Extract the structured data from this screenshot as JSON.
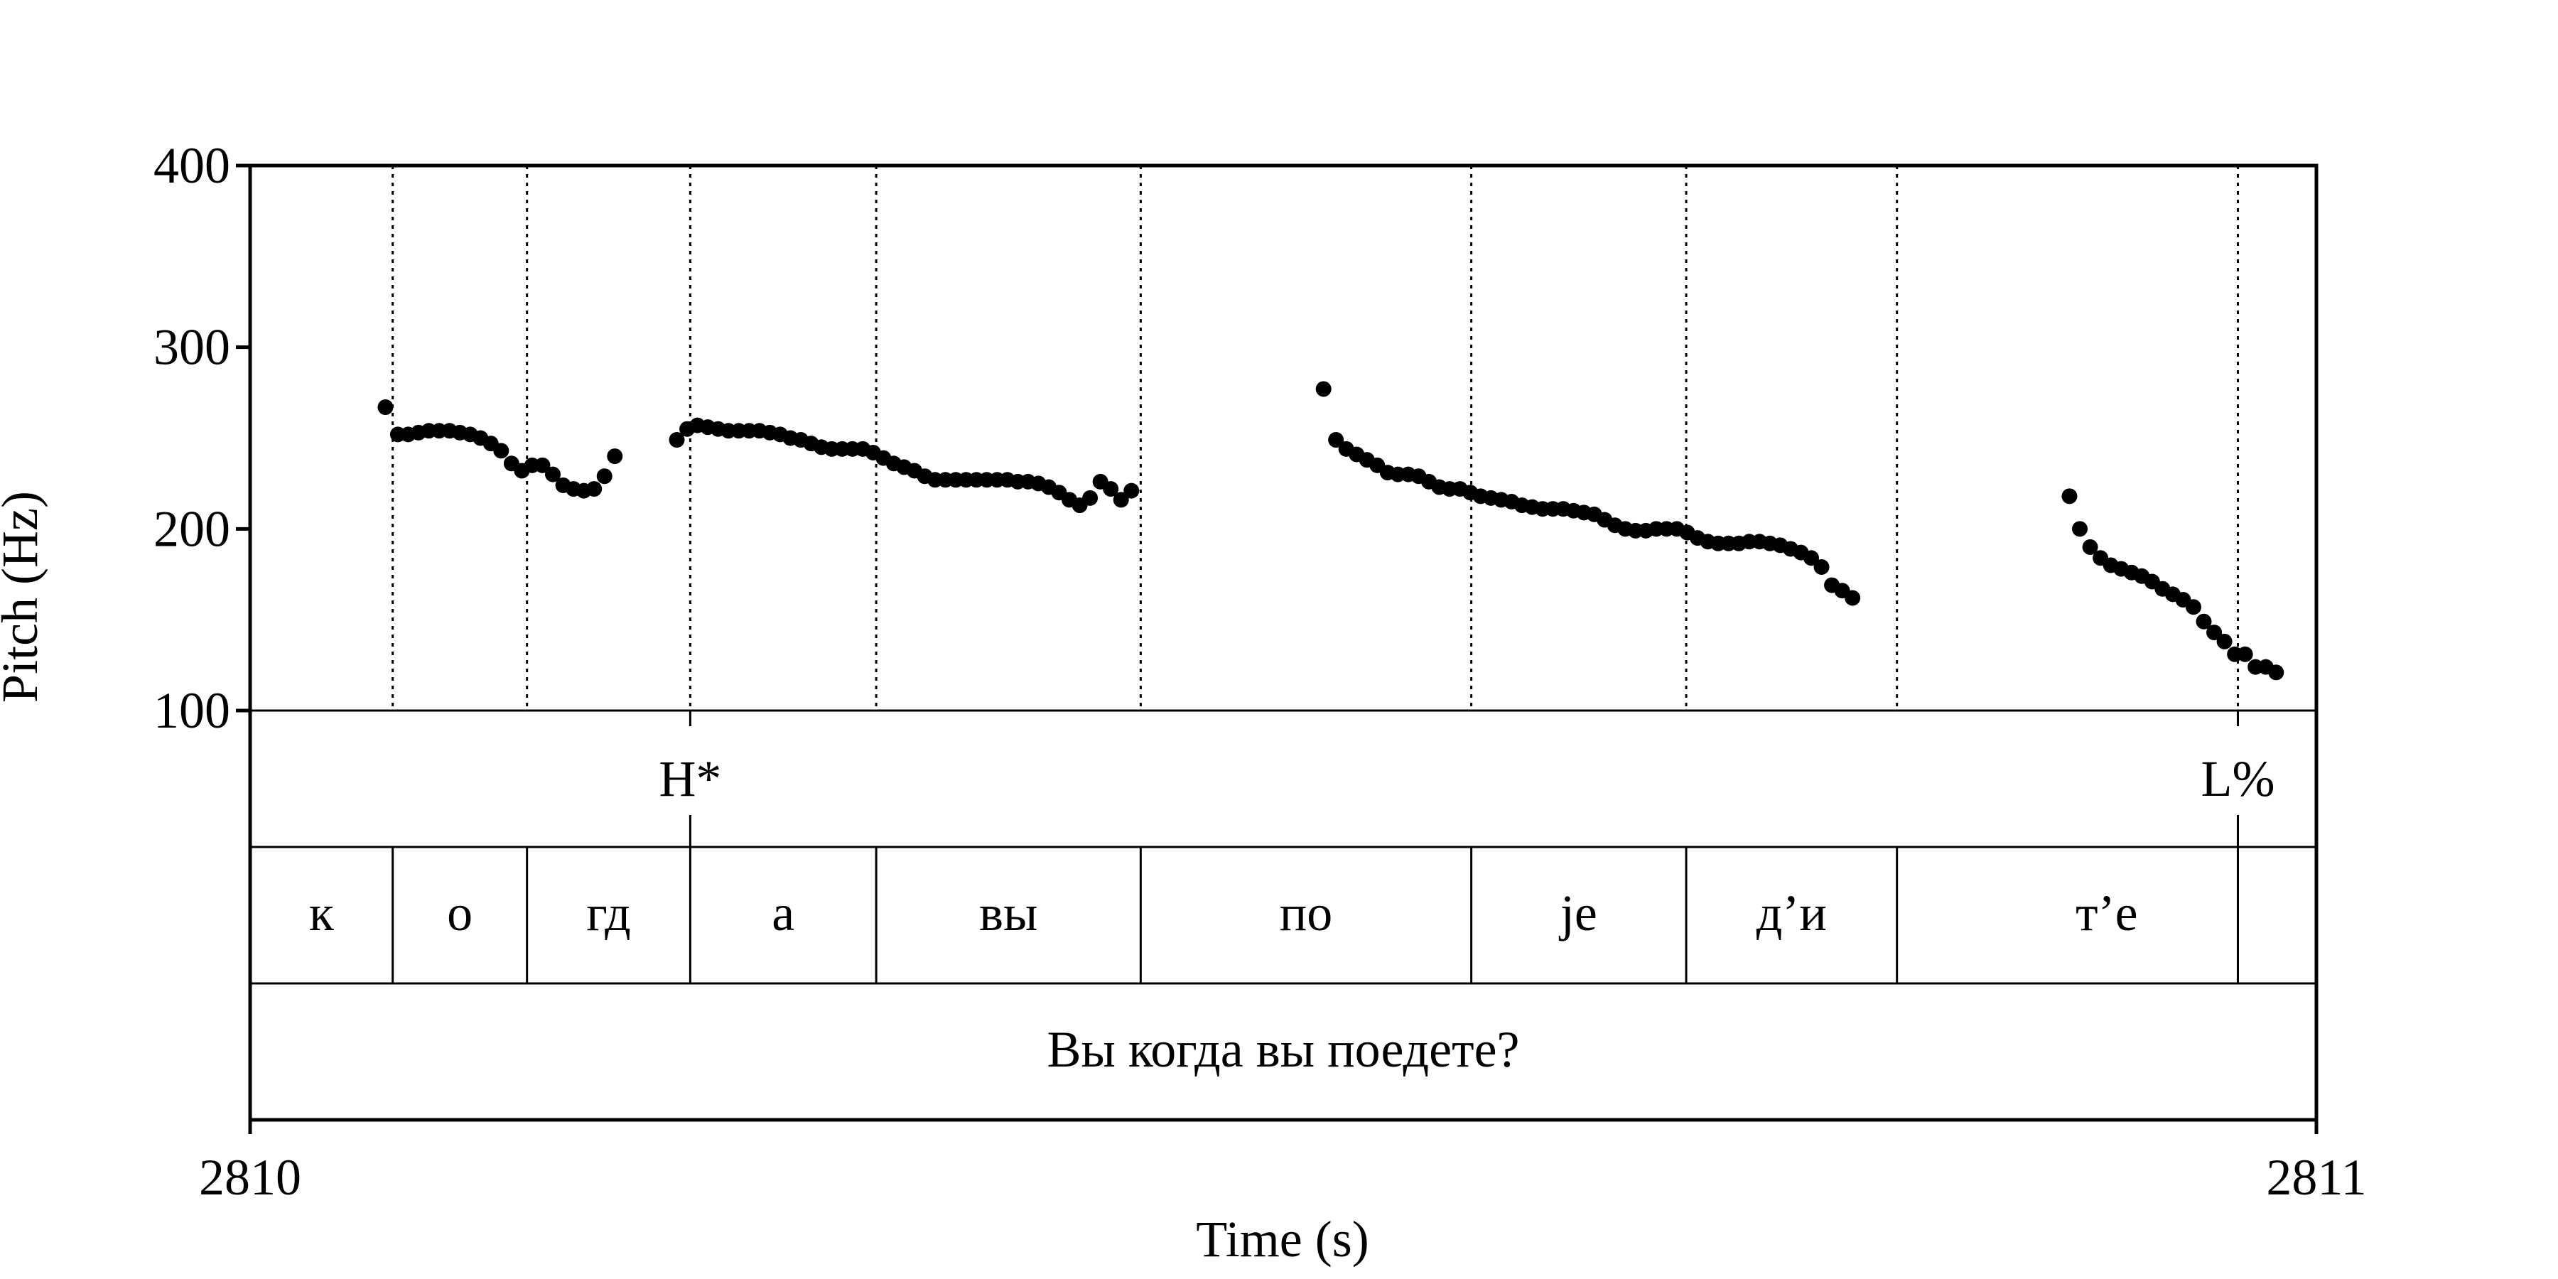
{
  "chart_data": {
    "type": "scatter",
    "xlabel": "Time (s)",
    "ylabel": "Pitch (Hz)",
    "xlim": [
      2810,
      2811
    ],
    "ylim": [
      100,
      400
    ],
    "x_ticks": [
      {
        "value": 2810,
        "label": "2810"
      },
      {
        "value": 2811,
        "label": "2811"
      }
    ],
    "y_ticks": [
      {
        "value": 100,
        "label": "100"
      },
      {
        "value": 200,
        "label": "200"
      },
      {
        "value": 300,
        "label": "300"
      },
      {
        "value": 400,
        "label": "400"
      }
    ],
    "boundaries": [
      2810.069,
      2810.134,
      2810.213,
      2810.303,
      2810.431,
      2810.591,
      2810.695,
      2810.797,
      2810.962
    ],
    "tones": [
      {
        "label": "H*",
        "time": 2810.213
      },
      {
        "label": "L%",
        "time": 2810.962
      }
    ],
    "segments": [
      {
        "label": "к",
        "start": 2810.0,
        "end": 2810.069
      },
      {
        "label": "о",
        "start": 2810.069,
        "end": 2810.134
      },
      {
        "label": "гд",
        "start": 2810.134,
        "end": 2810.213
      },
      {
        "label": "а",
        "start": 2810.213,
        "end": 2810.303
      },
      {
        "label": "вы",
        "start": 2810.303,
        "end": 2810.431
      },
      {
        "label": "по",
        "start": 2810.431,
        "end": 2810.591
      },
      {
        "label": "je",
        "start": 2810.591,
        "end": 2810.695
      },
      {
        "label": "д’и",
        "start": 2810.695,
        "end": 2810.797
      },
      {
        "label": "т’е",
        "start": 2810.797,
        "end": 2811.0
      }
    ],
    "sentence": "Вы когда вы поедете?",
    "series": [
      {
        "values": [
          [
            2810.0655,
            267
          ],
          [
            2810.0715,
            252
          ],
          [
            2810.0765,
            252
          ],
          [
            2810.0815,
            253
          ],
          [
            2810.0865,
            254
          ],
          [
            2810.0915,
            254
          ],
          [
            2810.0965,
            254
          ],
          [
            2810.1015,
            253
          ],
          [
            2810.1065,
            252
          ],
          [
            2810.1115,
            250
          ],
          [
            2810.1165,
            247
          ],
          [
            2810.1215,
            243
          ],
          [
            2810.1265,
            236
          ],
          [
            2810.1315,
            232
          ],
          [
            2810.1365,
            235
          ],
          [
            2810.1415,
            235
          ],
          [
            2810.1465,
            230
          ],
          [
            2810.1515,
            224
          ],
          [
            2810.1565,
            222
          ],
          [
            2810.1615,
            221
          ],
          [
            2810.1665,
            222
          ],
          [
            2810.1715,
            229
          ],
          [
            2810.1765,
            240
          ],
          [
            2810.2065,
            249
          ],
          [
            2810.2115,
            255
          ],
          [
            2810.2165,
            257
          ],
          [
            2810.2215,
            256
          ],
          [
            2810.2265,
            255
          ],
          [
            2810.2315,
            254
          ],
          [
            2810.2365,
            254
          ],
          [
            2810.2415,
            254
          ],
          [
            2810.2465,
            254
          ],
          [
            2810.2515,
            253
          ],
          [
            2810.2565,
            252
          ],
          [
            2810.2615,
            250
          ],
          [
            2810.2665,
            249
          ],
          [
            2810.2715,
            247
          ],
          [
            2810.2765,
            245
          ],
          [
            2810.2815,
            244
          ],
          [
            2810.2865,
            244
          ],
          [
            2810.2915,
            244
          ],
          [
            2810.2965,
            244
          ],
          [
            2810.3015,
            242
          ],
          [
            2810.3065,
            239
          ],
          [
            2810.3115,
            236
          ],
          [
            2810.3165,
            234
          ],
          [
            2810.3215,
            232
          ],
          [
            2810.3265,
            229
          ],
          [
            2810.3315,
            227
          ],
          [
            2810.3365,
            227
          ],
          [
            2810.3415,
            227
          ],
          [
            2810.3465,
            227
          ],
          [
            2810.3515,
            227
          ],
          [
            2810.3565,
            227
          ],
          [
            2810.3615,
            227
          ],
          [
            2810.3665,
            227
          ],
          [
            2810.3715,
            226
          ],
          [
            2810.3765,
            226
          ],
          [
            2810.3815,
            225
          ],
          [
            2810.3865,
            223
          ],
          [
            2810.3915,
            220
          ],
          [
            2810.3965,
            216
          ],
          [
            2810.4015,
            213
          ],
          [
            2810.4065,
            217
          ],
          [
            2810.4115,
            226
          ],
          [
            2810.4165,
            222
          ],
          [
            2810.4215,
            216
          ],
          [
            2810.4265,
            221
          ],
          [
            2810.5195,
            277
          ],
          [
            2810.5255,
            249
          ],
          [
            2810.5305,
            244
          ],
          [
            2810.5355,
            241
          ],
          [
            2810.5405,
            238
          ],
          [
            2810.5455,
            235
          ],
          [
            2810.5505,
            231
          ],
          [
            2810.5555,
            230
          ],
          [
            2810.5605,
            230
          ],
          [
            2810.5655,
            229
          ],
          [
            2810.5705,
            226
          ],
          [
            2810.5755,
            223
          ],
          [
            2810.5805,
            222
          ],
          [
            2810.5855,
            222
          ],
          [
            2810.5905,
            220
          ],
          [
            2810.5955,
            218
          ],
          [
            2810.6005,
            217
          ],
          [
            2810.6055,
            216
          ],
          [
            2810.6105,
            215
          ],
          [
            2810.6155,
            213
          ],
          [
            2810.6205,
            212
          ],
          [
            2810.6255,
            211
          ],
          [
            2810.6305,
            211
          ],
          [
            2810.6355,
            211
          ],
          [
            2810.6405,
            210
          ],
          [
            2810.6455,
            209
          ],
          [
            2810.6505,
            208
          ],
          [
            2810.6555,
            205
          ],
          [
            2810.6605,
            202
          ],
          [
            2810.6655,
            200
          ],
          [
            2810.6705,
            199
          ],
          [
            2810.6755,
            199
          ],
          [
            2810.6805,
            200
          ],
          [
            2810.6855,
            200
          ],
          [
            2810.6905,
            200
          ],
          [
            2810.6955,
            198
          ],
          [
            2810.7005,
            195
          ],
          [
            2810.7055,
            193
          ],
          [
            2810.7105,
            192
          ],
          [
            2810.7155,
            192
          ],
          [
            2810.7205,
            192
          ],
          [
            2810.7255,
            193
          ],
          [
            2810.7305,
            193
          ],
          [
            2810.7355,
            192
          ],
          [
            2810.7405,
            191
          ],
          [
            2810.7455,
            189
          ],
          [
            2810.7505,
            187
          ],
          [
            2810.7555,
            184
          ],
          [
            2810.7605,
            179
          ],
          [
            2810.7655,
            169
          ],
          [
            2810.7705,
            166
          ],
          [
            2810.7755,
            162
          ],
          [
            2810.8805,
            218
          ],
          [
            2810.8855,
            200
          ],
          [
            2810.8905,
            190
          ],
          [
            2810.8955,
            184
          ],
          [
            2810.9005,
            180
          ],
          [
            2810.9055,
            178
          ],
          [
            2810.9105,
            176
          ],
          [
            2810.9155,
            174
          ],
          [
            2810.9205,
            171
          ],
          [
            2810.9255,
            167
          ],
          [
            2810.9305,
            164
          ],
          [
            2810.9355,
            161
          ],
          [
            2810.9405,
            157
          ],
          [
            2810.9455,
            149
          ],
          [
            2810.9505,
            143
          ],
          [
            2810.9555,
            138
          ],
          [
            2810.9605,
            131
          ],
          [
            2810.9655,
            131
          ],
          [
            2810.9705,
            124
          ],
          [
            2810.9755,
            124
          ],
          [
            2810.9805,
            121
          ]
        ]
      }
    ]
  }
}
